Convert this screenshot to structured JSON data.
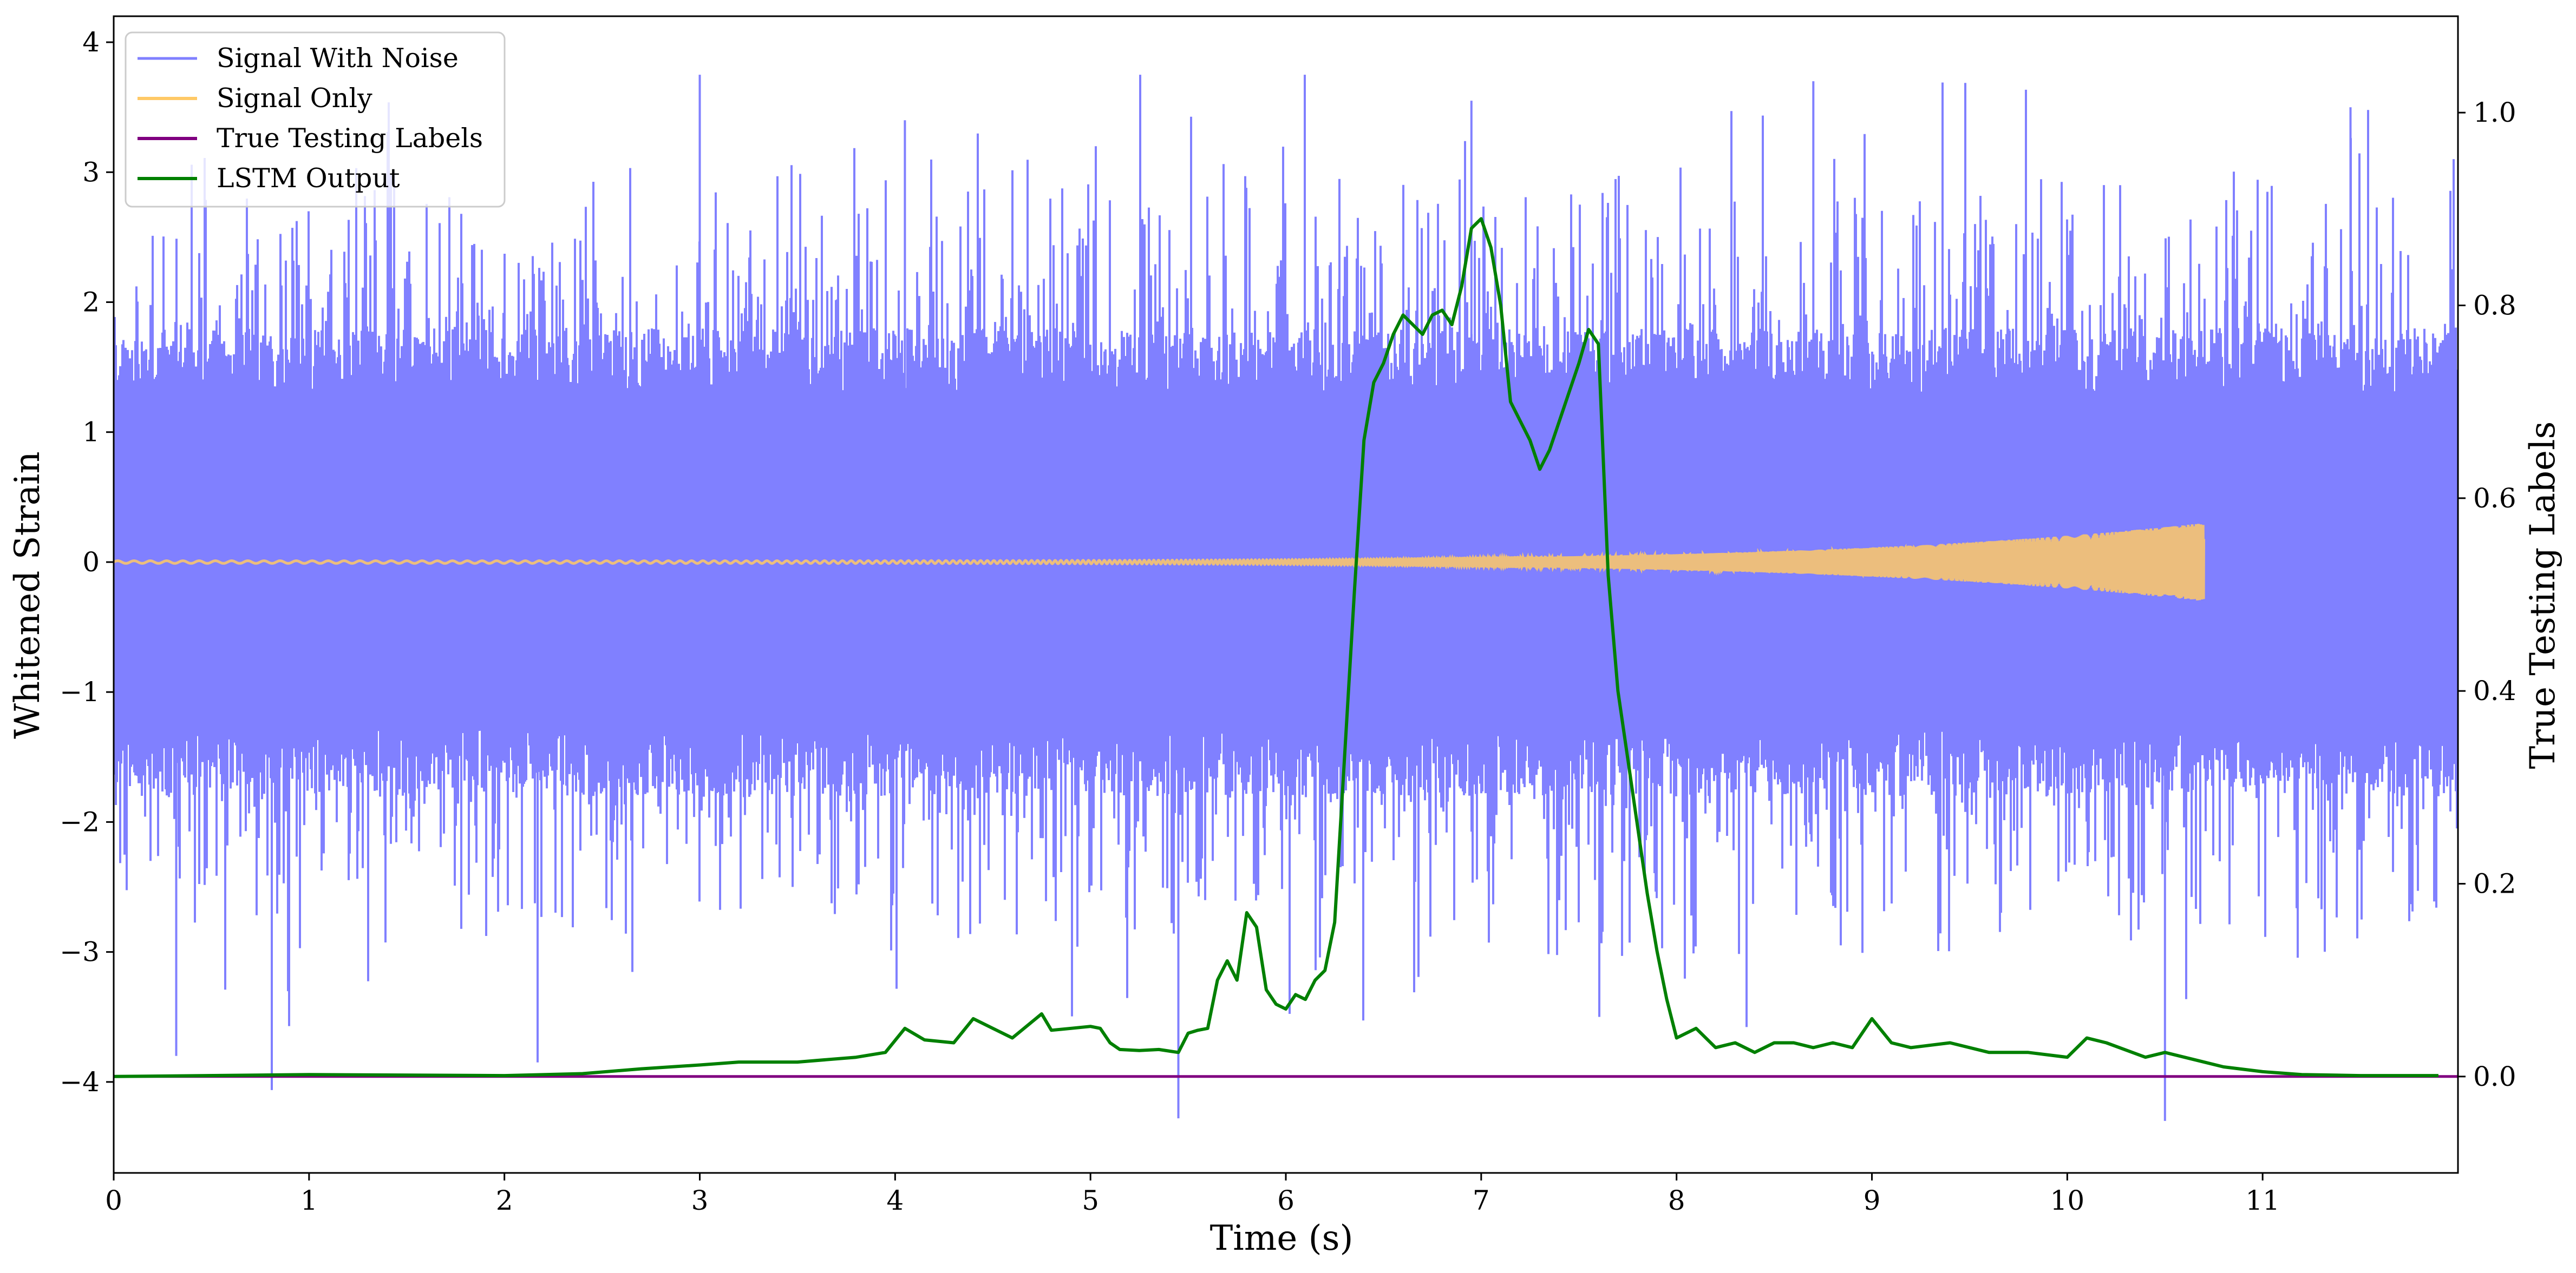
{
  "chart_data": {
    "type": "line",
    "xlabel": "Time (s)",
    "ylabel": "Whitened Strain",
    "y2label": "True Testing Labels",
    "xlim": [
      0,
      12
    ],
    "ylim": [
      -4.7,
      4.2
    ],
    "y2lim": [
      -0.1,
      1.1
    ],
    "x_ticks": [
      0,
      1,
      2,
      3,
      4,
      5,
      6,
      7,
      8,
      9,
      10,
      11
    ],
    "x_tick_labels": [
      "0",
      "1",
      "2",
      "3",
      "4",
      "5",
      "6",
      "7",
      "8",
      "9",
      "10",
      "11"
    ],
    "y_ticks": [
      -4,
      -3,
      -2,
      -1,
      0,
      1,
      2,
      3,
      4
    ],
    "y_tick_labels": [
      "−4",
      "−3",
      "−2",
      "−1",
      "0",
      "1",
      "2",
      "3",
      "4"
    ],
    "y2_ticks": [
      0.0,
      0.2,
      0.4,
      0.6,
      0.8,
      1.0
    ],
    "y2_tick_labels": [
      "0.0",
      "0.2",
      "0.4",
      "0.6",
      "0.8",
      "1.0"
    ],
    "legend_placement": "upper-left",
    "grid": false,
    "series": [
      {
        "name": "Signal With Noise",
        "axis": "left",
        "color": "#8080ff",
        "kind": "noise",
        "x_range": [
          0,
          12
        ],
        "typical_range": [
          -1.8,
          1.8
        ],
        "extremes": [
          -4.3,
          3.75
        ]
      },
      {
        "name": "Signal Only",
        "axis": "left",
        "color": "#ffc966",
        "kind": "chirp",
        "x_range": [
          0,
          10.7
        ],
        "amplitude_start": 0.01,
        "amplitude_end": 0.3
      },
      {
        "name": "True Testing Labels",
        "axis": "right",
        "color": "#800080",
        "x": [
          0,
          12
        ],
        "y": [
          0,
          0
        ]
      },
      {
        "name": "LSTM Output",
        "axis": "right",
        "color": "#008000",
        "x": [
          0,
          1,
          2,
          2.4,
          2.7,
          3.0,
          3.2,
          3.5,
          3.8,
          3.95,
          4.05,
          4.15,
          4.3,
          4.4,
          4.5,
          4.6,
          4.75,
          4.8,
          4.9,
          5.0,
          5.05,
          5.1,
          5.15,
          5.25,
          5.35,
          5.45,
          5.5,
          5.55,
          5.6,
          5.65,
          5.7,
          5.75,
          5.8,
          5.85,
          5.9,
          5.95,
          6.0,
          6.05,
          6.1,
          6.15,
          6.2,
          6.25,
          6.3,
          6.35,
          6.4,
          6.45,
          6.5,
          6.55,
          6.6,
          6.7,
          6.75,
          6.8,
          6.85,
          6.9,
          6.95,
          7.0,
          7.05,
          7.1,
          7.15,
          7.2,
          7.25,
          7.3,
          7.35,
          7.4,
          7.45,
          7.5,
          7.55,
          7.6,
          7.65,
          7.7,
          7.75,
          7.8,
          7.85,
          7.9,
          7.95,
          8.0,
          8.1,
          8.2,
          8.3,
          8.4,
          8.5,
          8.6,
          8.7,
          8.8,
          8.9,
          9.0,
          9.1,
          9.2,
          9.4,
          9.6,
          9.8,
          10.0,
          10.1,
          10.2,
          10.4,
          10.5,
          10.6,
          10.8,
          11.0,
          11.2,
          11.5,
          11.9
        ],
        "y": [
          0.0,
          0.002,
          0.001,
          0.003,
          0.008,
          0.012,
          0.015,
          0.015,
          0.02,
          0.025,
          0.05,
          0.038,
          0.035,
          0.06,
          0.05,
          0.04,
          0.065,
          0.048,
          0.05,
          0.052,
          0.05,
          0.035,
          0.028,
          0.027,
          0.028,
          0.025,
          0.045,
          0.048,
          0.05,
          0.1,
          0.12,
          0.1,
          0.17,
          0.155,
          0.09,
          0.075,
          0.07,
          0.085,
          0.08,
          0.1,
          0.11,
          0.16,
          0.33,
          0.5,
          0.66,
          0.72,
          0.74,
          0.77,
          0.79,
          0.77,
          0.79,
          0.795,
          0.78,
          0.82,
          0.88,
          0.89,
          0.86,
          0.8,
          0.7,
          0.68,
          0.66,
          0.63,
          0.65,
          0.68,
          0.71,
          0.74,
          0.775,
          0.76,
          0.52,
          0.4,
          0.33,
          0.26,
          0.19,
          0.13,
          0.08,
          0.04,
          0.05,
          0.03,
          0.035,
          0.025,
          0.035,
          0.035,
          0.03,
          0.035,
          0.03,
          0.06,
          0.035,
          0.03,
          0.035,
          0.025,
          0.025,
          0.02,
          0.04,
          0.035,
          0.02,
          0.025,
          0.02,
          0.01,
          0.005,
          0.002,
          0.001,
          0.001
        ]
      }
    ]
  }
}
